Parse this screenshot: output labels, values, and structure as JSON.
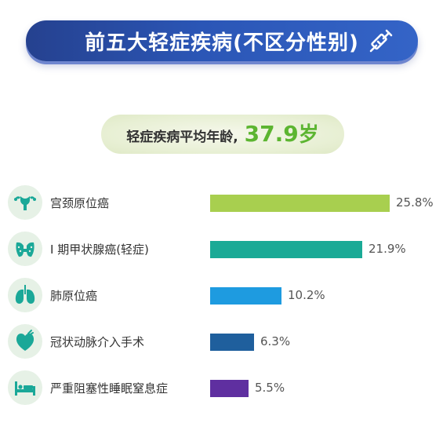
{
  "header": {
    "title": "前五大轻症疾病(不区分性别)"
  },
  "summary": {
    "label": "轻症疾病平均年龄,",
    "value": "37.9",
    "unit": "岁"
  },
  "chart_data": {
    "type": "bar",
    "orientation": "horizontal",
    "categories": [
      "宫颈原位癌",
      "I 期甲状腺癌(轻症)",
      "肺原位癌",
      "冠状动脉介入手术",
      "严重阻塞性睡眠窒息症"
    ],
    "values": [
      25.8,
      21.9,
      10.2,
      6.3,
      5.5
    ],
    "value_labels": [
      "25.8%",
      "21.9%",
      "10.2%",
      "6.3%",
      "5.5%"
    ],
    "colors": [
      "#a8cf4f",
      "#1aaa96",
      "#1e9be0",
      "#1f5f9d",
      "#5f2fa0"
    ],
    "icons": [
      "uterus-icon",
      "thyroid-icon",
      "lungs-icon",
      "heart-icon",
      "bed-icon"
    ],
    "xlim": [
      0,
      25.8
    ],
    "grid": false
  }
}
